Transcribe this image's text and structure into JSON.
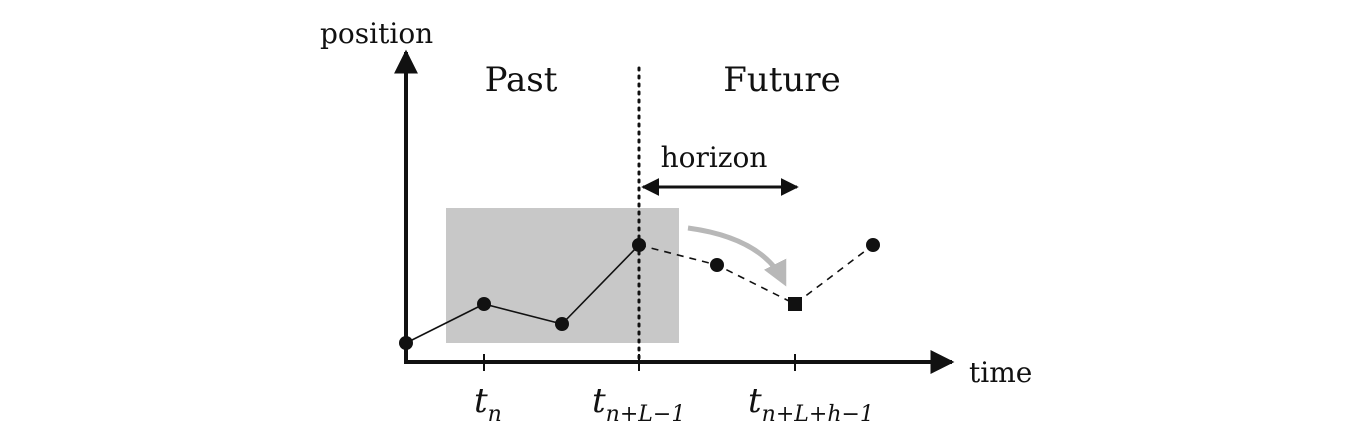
{
  "axes": {
    "y_label": "position",
    "x_label": "time"
  },
  "regions": {
    "past_label": "Past",
    "future_label": "Future"
  },
  "horizon": {
    "label": "horizon"
  },
  "ticks": [
    {
      "main": "t",
      "sub": "n"
    },
    {
      "main": "t",
      "sub": "n+L−1"
    },
    {
      "main": "t",
      "sub": "n+L+h−1"
    }
  ],
  "colors": {
    "ink": "#111111",
    "window_fill": "#c8c8c8",
    "arrow_gray": "#b8b8b8"
  }
}
